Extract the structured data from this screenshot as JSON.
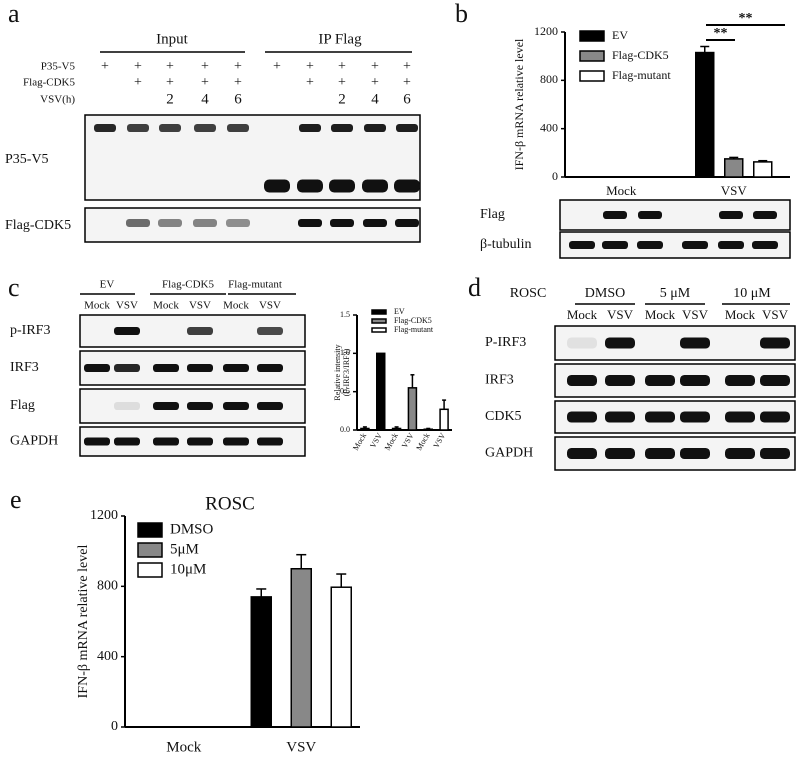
{
  "panel_a": {
    "letter": "a",
    "groups": [
      "Input",
      "IP Flag"
    ],
    "row_labels": [
      "P35-V5",
      "Flag-CDK5",
      "VSV(h)"
    ],
    "lanes": [
      [
        "+",
        "+",
        "+",
        "+",
        "+",
        "+",
        "+",
        "+",
        "+",
        "+"
      ],
      [
        null,
        "+",
        "+",
        "+",
        "+",
        null,
        "+",
        "+",
        "+",
        "+"
      ],
      [
        null,
        null,
        "2",
        "4",
        "6",
        null,
        null,
        "2",
        "4",
        "6"
      ]
    ],
    "blots": [
      "P35-V5",
      "Flag-CDK5"
    ]
  },
  "panel_b": {
    "letter": "b",
    "blots": [
      "Flag",
      "β-tubulin"
    ]
  },
  "panel_c": {
    "letter": "c",
    "groups": [
      "EV",
      "Flag-CDK5",
      "Flag-mutant"
    ],
    "lanes": [
      "Mock",
      "VSV",
      "Mock",
      "VSV",
      "Mock",
      "VSV"
    ],
    "blots": [
      "p-IRF3",
      "IRF3",
      "Flag",
      "GAPDH"
    ]
  },
  "panel_d": {
    "letter": "d",
    "treatment": "ROSC",
    "groups": [
      "DMSO",
      "5 μM",
      "10 μM"
    ],
    "lanes": [
      "Mock",
      "VSV",
      "Mock",
      "VSV",
      "Mock",
      "VSV"
    ],
    "blots": [
      "P-IRF3",
      "IRF3",
      "CDK5",
      "GAPDH"
    ]
  },
  "panel_e": {
    "letter": "e"
  },
  "chart_data": [
    {
      "type": "bar",
      "y_label": "IFN-β mRNA relative level",
      "categories": [
        "Mock",
        "VSV"
      ],
      "series": [
        {
          "name": "EV",
          "color": "#000000",
          "values": [
            0,
            1030
          ],
          "errors": [
            null,
            50
          ]
        },
        {
          "name": "Flag-CDK5",
          "color": "#888888",
          "values": [
            0,
            150
          ],
          "errors": [
            null,
            12
          ]
        },
        {
          "name": "Flag-mutant",
          "color": "#ffffff",
          "values": [
            0,
            125
          ],
          "errors": [
            null,
            10
          ]
        }
      ],
      "ylim": [
        0,
        1200
      ],
      "yticks": [
        0,
        400,
        800,
        1200
      ],
      "annotations": [
        "**",
        "**"
      ]
    },
    {
      "type": "bar",
      "y_label": [
        "Relative intensity",
        "(P-IRF3/IRF3)"
      ],
      "categories": [
        "Mock",
        "VSV",
        "Mock",
        "VSV",
        "Mock",
        "VSV"
      ],
      "series": [
        {
          "name": "EV",
          "color": "#000000",
          "values": [
            0.02,
            1.0,
            null,
            null,
            null,
            null
          ],
          "errors": [
            0.02,
            null,
            null,
            null,
            null,
            null
          ]
        },
        {
          "name": "Flag-CDK5",
          "color": "#888888",
          "values": [
            null,
            null,
            0.02,
            0.55,
            null,
            null
          ],
          "errors": [
            null,
            null,
            0.02,
            0.17,
            null,
            null
          ]
        },
        {
          "name": "Flag-mutant",
          "color": "#ffffff",
          "values": [
            null,
            null,
            null,
            null,
            0.01,
            0.27
          ],
          "errors": [
            null,
            null,
            null,
            null,
            0.01,
            0.12
          ]
        }
      ],
      "ylim": [
        0,
        1.5
      ],
      "yticks": [
        {
          "value": 0,
          "label": "0.0"
        },
        0.5,
        {
          "value": 1,
          "label": "1.0"
        },
        1.5
      ]
    },
    {
      "type": "bar",
      "title": "ROSC",
      "y_label": "IFN-β mRNA relative level",
      "categories": [
        "Mock",
        "VSV"
      ],
      "series": [
        {
          "name": "DMSO",
          "color": "#000000",
          "values": [
            0,
            740
          ],
          "errors": [
            null,
            45
          ]
        },
        {
          "name": "5μM",
          "color": "#888888",
          "values": [
            0,
            900
          ],
          "errors": [
            null,
            80
          ]
        },
        {
          "name": "10μM",
          "color": "#ffffff",
          "values": [
            0,
            795
          ],
          "errors": [
            null,
            75
          ]
        }
      ],
      "ylim": [
        0,
        1200
      ],
      "yticks": [
        0,
        400,
        800,
        1200
      ]
    }
  ]
}
